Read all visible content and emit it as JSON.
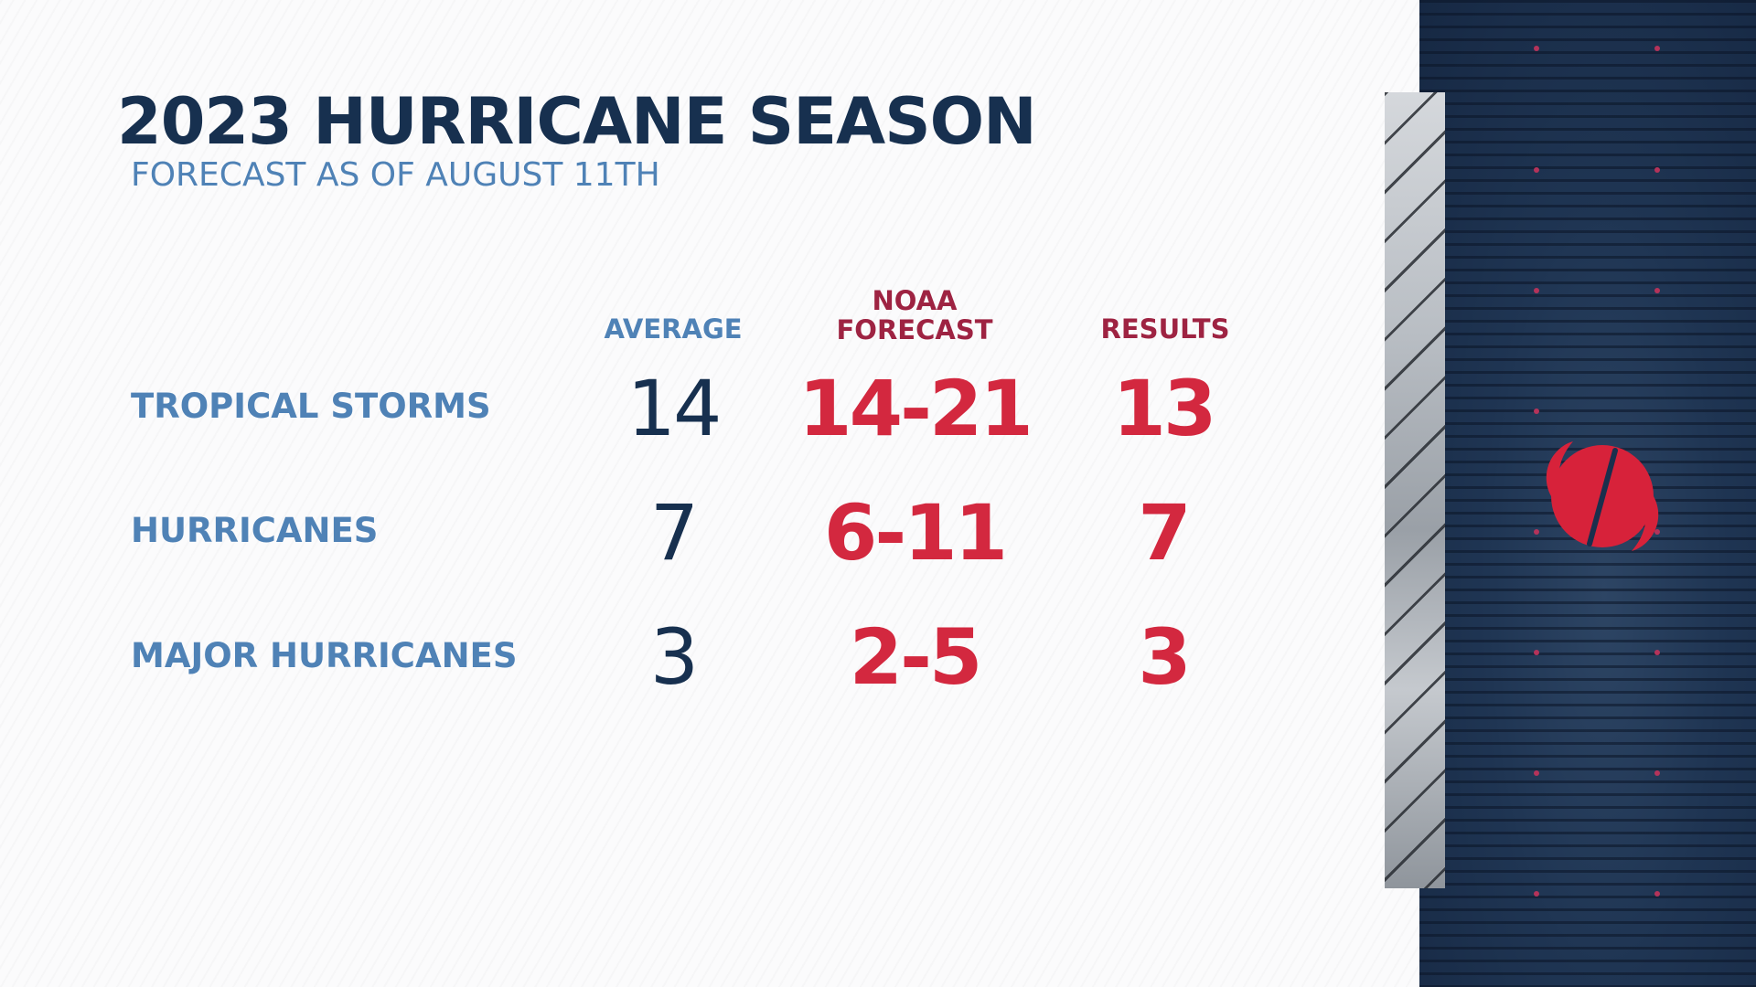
{
  "title": "2023 HURRICANE SEASON",
  "subtitle": "FORECAST AS OF AUGUST 11TH",
  "columns": {
    "average": "AVERAGE",
    "noaa_line1": "NOAA",
    "noaa_line2": "FORECAST",
    "results": "RESULTS"
  },
  "rows": [
    {
      "label": "TROPICAL STORMS",
      "average": "14",
      "noaa": "14-21",
      "results": "13"
    },
    {
      "label": "HURRICANES",
      "average": "7",
      "noaa": "6-11",
      "results": "7"
    },
    {
      "label": "MAJOR HURRICANES",
      "average": "3",
      "noaa": "2-5",
      "results": "3"
    }
  ],
  "colors": {
    "navy": "#17304f",
    "light_blue": "#4f82b6",
    "red": "#d3283f",
    "maroon": "#9e2342"
  },
  "icons": {
    "storm_logo": "hurricane-symbol-icon"
  }
}
